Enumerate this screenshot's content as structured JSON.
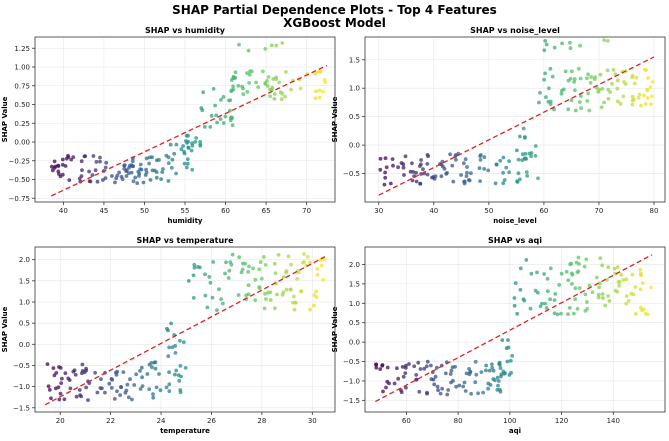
{
  "figure": {
    "title": "SHAP Partial Dependence Plots - Top 4 Features",
    "subtitle": "XGBoost Model"
  },
  "chart_data": [
    {
      "type": "scatter",
      "title": "SHAP vs humidity",
      "xlabel": "humidity",
      "ylabel": "SHAP Value",
      "xlim": [
        36.5,
        73.5
      ],
      "ylim": [
        -0.8,
        1.4
      ],
      "xticks": [
        40,
        45,
        50,
        55,
        60,
        65,
        70
      ],
      "yticks": [
        -0.75,
        -0.5,
        -0.25,
        0.0,
        0.25,
        0.5,
        0.75,
        1.0,
        1.25
      ],
      "tick_labels_x": [
        "40",
        "45",
        "50",
        "55",
        "60",
        "65",
        "70"
      ],
      "tick_labels_y": [
        "−0.75",
        "−0.50",
        "−0.25",
        "0.00",
        "0.25",
        "0.50",
        "0.75",
        "1.00",
        "1.25"
      ],
      "x_range": [
        38.5,
        72.5
      ],
      "segments": [
        {
          "x0": 38.5,
          "x1": 53.0,
          "y_lo": -0.55,
          "y_hi": -0.18,
          "n": 95
        },
        {
          "x0": 53.0,
          "x1": 56.0,
          "y_lo": -0.45,
          "y_hi": 0.05,
          "n": 18
        },
        {
          "x0": 55.0,
          "x1": 57.0,
          "y_lo": -0.05,
          "y_hi": 0.1,
          "n": 12
        },
        {
          "x0": 57.0,
          "x1": 61.0,
          "y_lo": 0.2,
          "y_hi": 0.75,
          "n": 22
        },
        {
          "x0": 60.0,
          "x1": 72.5,
          "y_lo": 0.55,
          "y_hi": 0.95,
          "n": 60
        },
        {
          "x0": 61.0,
          "x1": 67.0,
          "y_lo": 1.2,
          "y_hi": 1.32,
          "n": 6
        }
      ],
      "trend": {
        "x": [
          38.5,
          72.5
        ],
        "y": [
          -0.72,
          1.02
        ]
      }
    },
    {
      "type": "scatter",
      "title": "SHAP vs noise_level",
      "xlabel": "noise_level",
      "ylabel": "SHAP Value",
      "xlim": [
        27.5,
        82.0
      ],
      "ylim": [
        -1.0,
        1.9
      ],
      "xticks": [
        30,
        40,
        50,
        60,
        70,
        80
      ],
      "yticks": [
        -0.5,
        0.0,
        0.5,
        1.0,
        1.5
      ],
      "tick_labels_x": [
        "30",
        "40",
        "50",
        "60",
        "70",
        "80"
      ],
      "tick_labels_y": [
        "−0.5",
        "0.0",
        "0.5",
        "1.0",
        "1.5"
      ],
      "x_range": [
        30,
        80
      ],
      "segments": [
        {
          "x0": 30.0,
          "x1": 57.0,
          "y_lo": -0.7,
          "y_hi": -0.15,
          "n": 95
        },
        {
          "x0": 55.0,
          "x1": 59.0,
          "y_lo": -0.6,
          "y_hi": 0.3,
          "n": 14
        },
        {
          "x0": 59.0,
          "x1": 80.0,
          "y_lo": 0.6,
          "y_hi": 1.35,
          "n": 85
        },
        {
          "x0": 60.0,
          "x1": 80.0,
          "y_lo": 1.5,
          "y_hi": 1.85,
          "n": 10
        }
      ],
      "trend": {
        "x": [
          30,
          80
        ],
        "y": [
          -0.88,
          1.55
        ]
      }
    },
    {
      "type": "scatter",
      "title": "SHAP vs temperature",
      "xlabel": "temperature",
      "ylabel": "SHAP Value",
      "xlim": [
        19.0,
        30.9
      ],
      "ylim": [
        -1.6,
        2.3
      ],
      "xticks": [
        20,
        22,
        24,
        26,
        28,
        30
      ],
      "yticks": [
        -1.5,
        -1.0,
        -0.5,
        0.0,
        0.5,
        1.0,
        1.5,
        2.0
      ],
      "tick_labels_x": [
        "20",
        "22",
        "24",
        "26",
        "28",
        "30"
      ],
      "tick_labels_y": [
        "−1.5",
        "−1.0",
        "−0.5",
        "0.0",
        "0.5",
        "1.0",
        "1.5",
        "2.0"
      ],
      "x_range": [
        19.4,
        30.5
      ],
      "segments": [
        {
          "x0": 19.4,
          "x1": 24.8,
          "y_lo": -1.35,
          "y_hi": -0.4,
          "n": 95
        },
        {
          "x0": 24.2,
          "x1": 25.0,
          "y_lo": -0.6,
          "y_hi": 0.6,
          "n": 12
        },
        {
          "x0": 25.0,
          "x1": 30.5,
          "y_lo": 0.8,
          "y_hi": 1.95,
          "n": 85
        },
        {
          "x0": 26.0,
          "x1": 30.5,
          "y_lo": 1.9,
          "y_hi": 2.15,
          "n": 12
        }
      ],
      "trend": {
        "x": [
          19.4,
          30.5
        ],
        "y": [
          -1.43,
          2.07
        ]
      }
    },
    {
      "type": "scatter",
      "title": "SHAP vs aqi",
      "xlabel": "aqi",
      "ylabel": "SHAP Value",
      "xlim": [
        44.0,
        160.0
      ],
      "ylim": [
        -1.8,
        2.45
      ],
      "xticks": [
        60,
        80,
        100,
        120,
        140
      ],
      "yticks": [
        -1.5,
        -1.0,
        -0.5,
        0.0,
        0.5,
        1.0,
        1.5,
        2.0
      ],
      "tick_labels_x": [
        "60",
        "80",
        "100",
        "120",
        "140"
      ],
      "tick_labels_y": [
        "−1.5",
        "−1.0",
        "−0.5",
        "0.0",
        "0.5",
        "1.0",
        "1.5",
        "2.0"
      ],
      "x_range": [
        48,
        155
      ],
      "segments": [
        {
          "x0": 48.0,
          "x1": 97.0,
          "y_lo": -1.35,
          "y_hi": -0.5,
          "n": 95
        },
        {
          "x0": 96.0,
          "x1": 101.0,
          "y_lo": -0.9,
          "y_hi": 0.2,
          "n": 14
        },
        {
          "x0": 101.0,
          "x1": 155.0,
          "y_lo": 0.7,
          "y_hi": 1.9,
          "n": 90
        },
        {
          "x0": 105.0,
          "x1": 150.0,
          "y_lo": 1.9,
          "y_hi": 2.2,
          "n": 12
        }
      ],
      "trend": {
        "x": [
          48,
          155
        ],
        "y": [
          -1.53,
          2.25
        ]
      }
    }
  ]
}
